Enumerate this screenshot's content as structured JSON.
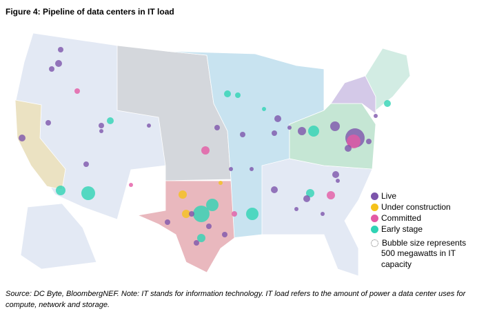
{
  "title": "Figure 4: Pipeline of data centers in IT load",
  "legend": {
    "items": [
      {
        "label": "Live",
        "color": "#7d55ab"
      },
      {
        "label": "Under construction",
        "color": "#f5c21b"
      },
      {
        "label": "Committed",
        "color": "#e35aa4"
      },
      {
        "label": "Early stage",
        "color": "#2fd3b4"
      }
    ],
    "size_note_1": "Bubble size represents",
    "size_note_2": "500 megawatts in IT",
    "size_note_3": "capacity"
  },
  "source": "Source: DC Byte, BloombergNEF. Note: IT stands for information technology. IT load refers to the amount of power a data center uses for compute, network and storage.",
  "region_colors": {
    "west": "#e3e9f4",
    "california": "#ebe2c2",
    "central": "#d4d7dc",
    "midwest": "#c8e3f0",
    "texas": "#e9b8be",
    "southeast": "#e3e9f4",
    "pjm": "#c5e6d4",
    "newyork": "#d4c9e8",
    "newengland": "#d2ece3"
  }
}
